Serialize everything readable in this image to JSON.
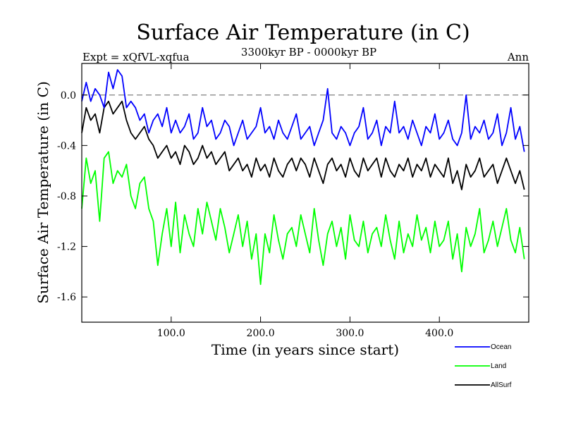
{
  "chart_data": {
    "type": "line",
    "title": "Surface Air Temperature (in C)",
    "subtitle": "3300kyr BP - 0000kyr BP",
    "experiment_label": "Expt = xQfVL-xqfua",
    "season_label": "Ann",
    "xlabel": "Time (in years since start)",
    "ylabel": "Surface Air Temperature (in C)",
    "xlim": [
      0,
      500
    ],
    "ylim": [
      -1.8,
      0.25
    ],
    "x_ticks": [
      100,
      200,
      300,
      400
    ],
    "x_tick_labels": [
      "100.0",
      "200.0",
      "300.0",
      "400.0"
    ],
    "y_ticks": [
      0.0,
      -0.4,
      -0.8,
      -1.2,
      -1.6
    ],
    "y_tick_labels": [
      "0.0",
      "-0.4",
      "-0.8",
      "-1.2",
      "-1.6"
    ],
    "zero_line": {
      "value": 0.0,
      "style": "dashed",
      "color": "#808080"
    },
    "series_step_years": 5,
    "series": [
      {
        "name": "Ocean",
        "color": "#0000ff",
        "x_start": 0,
        "values": [
          -0.05,
          0.1,
          -0.05,
          0.05,
          0.0,
          -0.1,
          0.18,
          0.05,
          0.2,
          0.15,
          -0.1,
          -0.05,
          -0.1,
          -0.2,
          -0.15,
          -0.3,
          -0.2,
          -0.15,
          -0.25,
          -0.1,
          -0.3,
          -0.2,
          -0.3,
          -0.25,
          -0.15,
          -0.35,
          -0.3,
          -0.1,
          -0.25,
          -0.2,
          -0.35,
          -0.3,
          -0.2,
          -0.25,
          -0.4,
          -0.3,
          -0.2,
          -0.35,
          -0.3,
          -0.25,
          -0.1,
          -0.3,
          -0.25,
          -0.35,
          -0.2,
          -0.3,
          -0.35,
          -0.25,
          -0.15,
          -0.35,
          -0.3,
          -0.25,
          -0.4,
          -0.3,
          -0.2,
          0.05,
          -0.3,
          -0.35,
          -0.25,
          -0.3,
          -0.4,
          -0.3,
          -0.25,
          -0.1,
          -0.35,
          -0.3,
          -0.2,
          -0.4,
          -0.25,
          -0.3,
          -0.05,
          -0.3,
          -0.25,
          -0.35,
          -0.2,
          -0.3,
          -0.4,
          -0.25,
          -0.3,
          -0.15,
          -0.35,
          -0.3,
          -0.2,
          -0.35,
          -0.4,
          -0.3,
          0.0,
          -0.35,
          -0.25,
          -0.3,
          -0.2,
          -0.35,
          -0.3,
          -0.15,
          -0.4,
          -0.3,
          -0.1,
          -0.35,
          -0.25,
          -0.45
        ]
      },
      {
        "name": "Land",
        "color": "#00ff00",
        "x_start": 0,
        "values": [
          -0.9,
          -0.5,
          -0.7,
          -0.6,
          -1.0,
          -0.5,
          -0.45,
          -0.7,
          -0.6,
          -0.65,
          -0.55,
          -0.8,
          -0.9,
          -0.7,
          -0.65,
          -0.9,
          -1.0,
          -1.35,
          -1.1,
          -0.9,
          -1.2,
          -0.85,
          -1.25,
          -0.95,
          -1.1,
          -1.2,
          -0.9,
          -1.1,
          -0.85,
          -1.0,
          -1.15,
          -0.9,
          -1.05,
          -1.25,
          -1.1,
          -0.95,
          -1.2,
          -1.0,
          -1.3,
          -1.1,
          -1.5,
          -1.1,
          -1.25,
          -0.95,
          -1.15,
          -1.3,
          -1.1,
          -1.05,
          -1.2,
          -0.95,
          -1.1,
          -1.25,
          -0.9,
          -1.15,
          -1.35,
          -1.1,
          -1.0,
          -1.2,
          -1.05,
          -1.3,
          -0.95,
          -1.15,
          -1.2,
          -1.0,
          -1.25,
          -1.1,
          -1.05,
          -1.2,
          -0.95,
          -1.15,
          -1.3,
          -1.0,
          -1.25,
          -1.1,
          -1.2,
          -0.95,
          -1.15,
          -1.05,
          -1.25,
          -1.0,
          -1.2,
          -1.15,
          -1.0,
          -1.3,
          -1.1,
          -1.4,
          -1.05,
          -1.2,
          -1.1,
          -0.9,
          -1.25,
          -1.15,
          -1.0,
          -1.2,
          -1.05,
          -0.9,
          -1.15,
          -1.25,
          -1.05,
          -1.3
        ]
      },
      {
        "name": "AllSurf",
        "color": "#000000",
        "x_start": 0,
        "values": [
          -0.3,
          -0.1,
          -0.2,
          -0.15,
          -0.3,
          -0.1,
          -0.05,
          -0.15,
          -0.1,
          -0.05,
          -0.2,
          -0.3,
          -0.35,
          -0.3,
          -0.25,
          -0.35,
          -0.4,
          -0.5,
          -0.45,
          -0.4,
          -0.5,
          -0.45,
          -0.55,
          -0.4,
          -0.45,
          -0.55,
          -0.5,
          -0.4,
          -0.5,
          -0.45,
          -0.55,
          -0.5,
          -0.45,
          -0.6,
          -0.55,
          -0.5,
          -0.6,
          -0.55,
          -0.65,
          -0.5,
          -0.6,
          -0.55,
          -0.65,
          -0.5,
          -0.6,
          -0.65,
          -0.55,
          -0.5,
          -0.6,
          -0.5,
          -0.55,
          -0.65,
          -0.5,
          -0.6,
          -0.7,
          -0.55,
          -0.5,
          -0.6,
          -0.55,
          -0.65,
          -0.5,
          -0.6,
          -0.65,
          -0.5,
          -0.6,
          -0.55,
          -0.5,
          -0.65,
          -0.5,
          -0.6,
          -0.65,
          -0.55,
          -0.6,
          -0.5,
          -0.65,
          -0.55,
          -0.6,
          -0.5,
          -0.65,
          -0.55,
          -0.6,
          -0.65,
          -0.5,
          -0.7,
          -0.6,
          -0.75,
          -0.55,
          -0.65,
          -0.6,
          -0.5,
          -0.65,
          -0.6,
          -0.55,
          -0.7,
          -0.6,
          -0.5,
          -0.6,
          -0.7,
          -0.6,
          -0.75
        ]
      }
    ],
    "legend_position": "bottom-right"
  }
}
